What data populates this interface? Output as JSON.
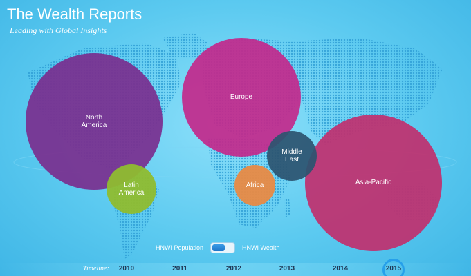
{
  "header": {
    "title": "The Wealth Reports",
    "subtitle": "Leading with Global Insights"
  },
  "regions": [
    {
      "name": "North America",
      "lines": [
        "North",
        "America"
      ],
      "color": "#7a2f8f"
    },
    {
      "name": "Europe",
      "lines": [
        "Europe"
      ],
      "color": "#c22a8c"
    },
    {
      "name": "Asia-Pacific",
      "lines": [
        "Asia-Pacific"
      ],
      "color": "#c0306f"
    },
    {
      "name": "Latin America",
      "lines": [
        "Latin",
        "America"
      ],
      "color": "#8fbc2f"
    },
    {
      "name": "Middle East",
      "lines": [
        "Middle",
        "East"
      ],
      "color": "#2c5470"
    },
    {
      "name": "Africa",
      "lines": [
        "Africa"
      ],
      "color": "#e88a44"
    }
  ],
  "toggle": {
    "left_label": "HNWI Population",
    "right_label": "HNWI Wealth"
  },
  "timeline": {
    "label": "Timeline:",
    "years": [
      "2010",
      "2011",
      "2012",
      "2013",
      "2014",
      "2015"
    ],
    "selected": "2015"
  }
}
